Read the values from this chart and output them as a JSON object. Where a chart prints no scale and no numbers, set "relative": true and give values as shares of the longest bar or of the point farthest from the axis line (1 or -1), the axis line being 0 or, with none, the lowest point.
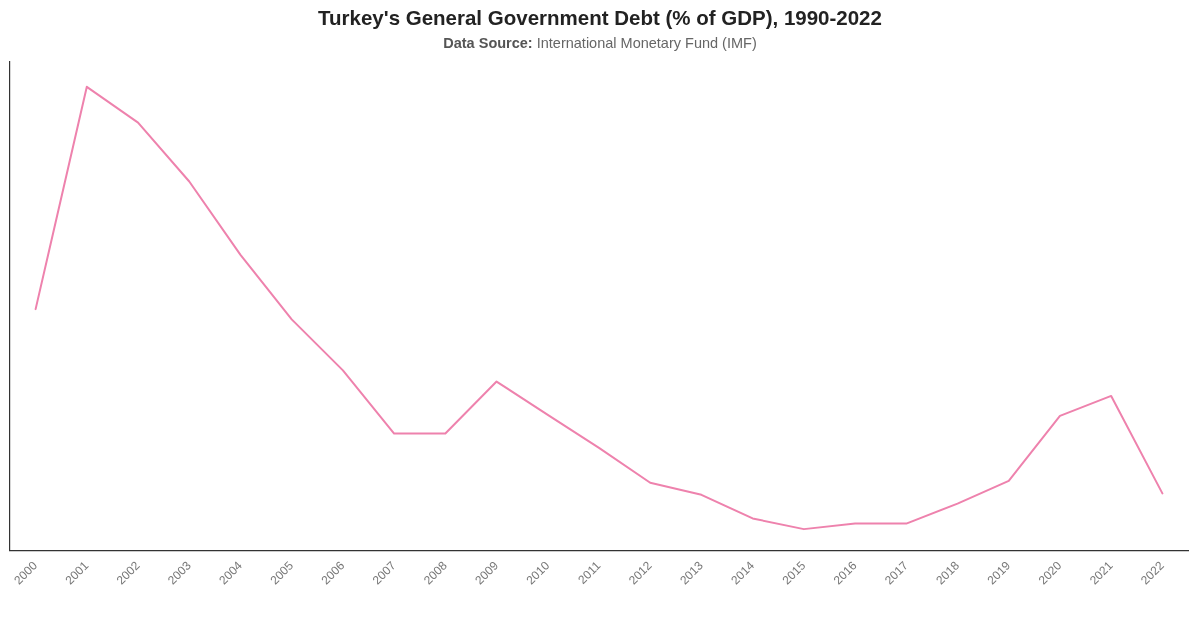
{
  "chart_data": {
    "type": "line",
    "title": "Turkey's General Government Debt (% of GDP), 1990-2022",
    "subtitle": "Data Source: International Monetary Fund (IMF)",
    "categories": [
      "2000",
      "2001",
      "2002",
      "2003",
      "2004",
      "2005",
      "2006",
      "2007",
      "2008",
      "2009",
      "2010",
      "2011",
      "2012",
      "2013",
      "2014",
      "2015",
      "2016",
      "2017",
      "2018",
      "2019",
      "2020",
      "2021",
      "2022"
    ],
    "series": [
      {
        "color": "#ee82ad",
        "values": [
          0.521,
          1,
          0.923,
          0.796,
          0.638,
          0.499,
          0.389,
          0.253,
          0.253,
          0.365,
          0.293,
          0.222,
          0.147,
          0.121,
          0.07,
          0.047,
          0.059,
          0.059,
          0.102,
          0.151,
          0.291,
          0.334,
          0.124
        ]
      }
    ],
    "relative": true
  }
}
